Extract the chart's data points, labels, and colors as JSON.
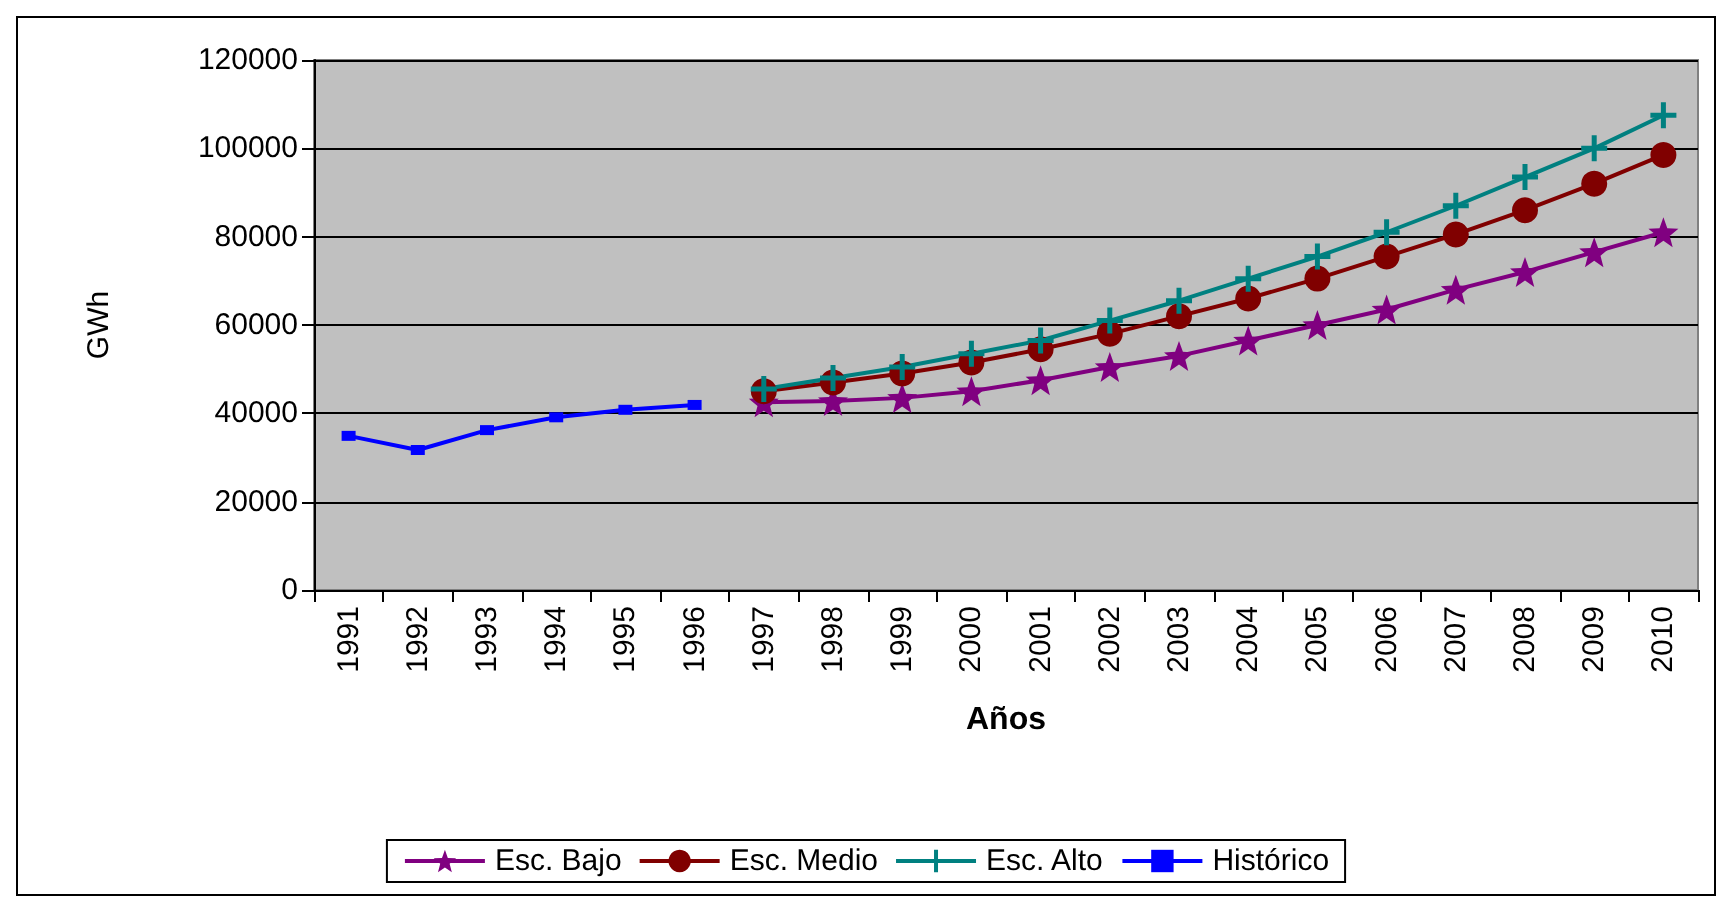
{
  "chart_data": {
    "type": "line",
    "xlabel": "Años",
    "ylabel": "GWh",
    "categories": [
      "1991",
      "1992",
      "1993",
      "1994",
      "1995",
      "1996",
      "1997",
      "1998",
      "1999",
      "2000",
      "2001",
      "2002",
      "2003",
      "2004",
      "2005",
      "2006",
      "2007",
      "2008",
      "2009",
      "2010"
    ],
    "series": [
      {
        "name": "Esc. Bajo",
        "color": "#800080",
        "marker": "star",
        "values": [
          null,
          null,
          null,
          null,
          null,
          null,
          42500,
          42800,
          43500,
          45000,
          47500,
          50500,
          53000,
          56500,
          60000,
          63500,
          68000,
          72000,
          76500,
          81000
        ]
      },
      {
        "name": "Esc. Medio",
        "color": "#800000",
        "marker": "circle",
        "values": [
          null,
          null,
          null,
          null,
          null,
          null,
          45000,
          47000,
          49000,
          51500,
          54500,
          58000,
          62000,
          66000,
          70500,
          75500,
          80500,
          86000,
          92000,
          98500
        ]
      },
      {
        "name": "Esc. Alto",
        "color": "#008080",
        "marker": "cross",
        "values": [
          null,
          null,
          null,
          null,
          null,
          null,
          45500,
          48000,
          50500,
          53500,
          56500,
          61000,
          65500,
          70500,
          75500,
          81000,
          87000,
          93500,
          100000,
          107500
        ]
      },
      {
        "name": "Histórico",
        "color": "#0000ff",
        "marker": "square",
        "values": [
          34900,
          31700,
          36200,
          39100,
          40800,
          41900,
          null,
          null,
          null,
          null,
          null,
          null,
          null,
          null,
          null,
          null,
          null,
          null,
          null,
          null
        ]
      }
    ],
    "ylim": [
      0,
      120000
    ],
    "yticks": [
      0,
      20000,
      40000,
      60000,
      80000,
      100000,
      120000
    ],
    "grid": "y",
    "legend": "bottom"
  }
}
